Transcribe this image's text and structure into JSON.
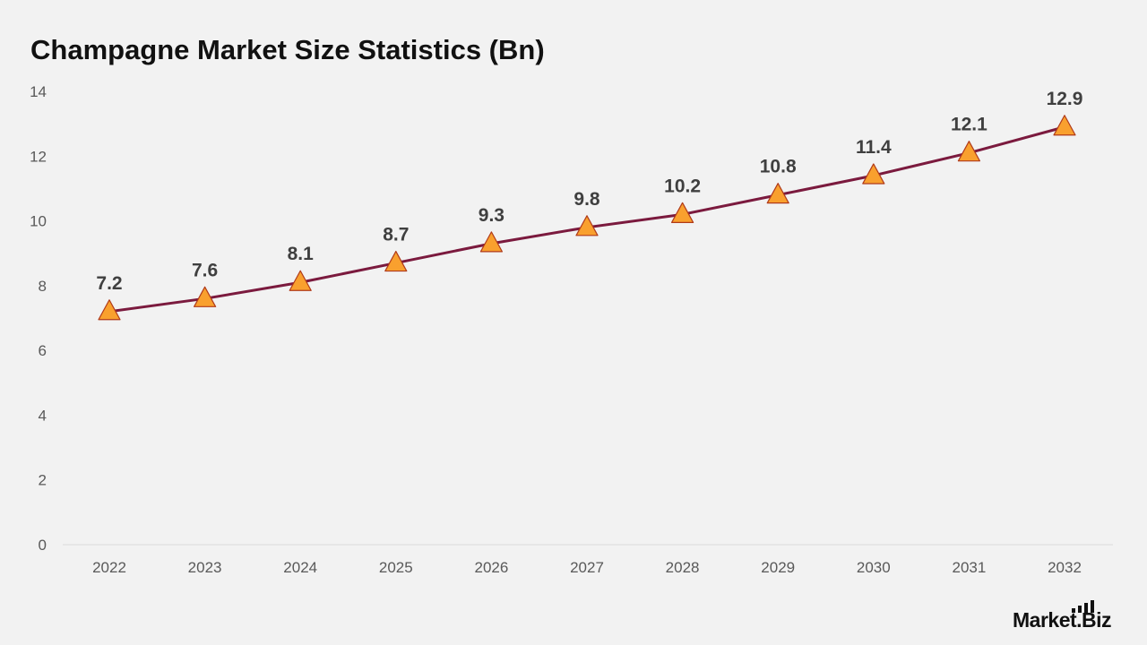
{
  "chart_data": {
    "type": "line",
    "title": "Champagne Market Size Statistics (Bn)",
    "categories": [
      "2022",
      "2023",
      "2024",
      "2025",
      "2026",
      "2027",
      "2028",
      "2029",
      "2030",
      "2031",
      "2032"
    ],
    "series": [
      {
        "values": [
          7.2,
          7.6,
          8.1,
          8.7,
          9.3,
          9.8,
          10.2,
          10.8,
          11.4,
          12.1,
          12.9
        ],
        "line_color": "#7b1a3e",
        "marker": "triangle",
        "marker_fill": "#f9a02e",
        "marker_stroke": "#b03a1a"
      }
    ],
    "data_labels": [
      "7.2",
      "7.6",
      "8.1",
      "8.7",
      "9.3",
      "9.8",
      "10.2",
      "10.8",
      "11.4",
      "12.1",
      "12.9"
    ],
    "y_ticks": [
      "0",
      "2",
      "4",
      "6",
      "8",
      "10",
      "12",
      "14"
    ],
    "ylim": [
      0,
      14
    ],
    "xlabel": "",
    "ylabel": "",
    "grid": false,
    "legend": "none"
  },
  "brand": {
    "name": "Market.Biz"
  },
  "colors": {
    "background": "#f2f2f2",
    "axis_line": "#d9d9d9",
    "title": "#111111"
  }
}
